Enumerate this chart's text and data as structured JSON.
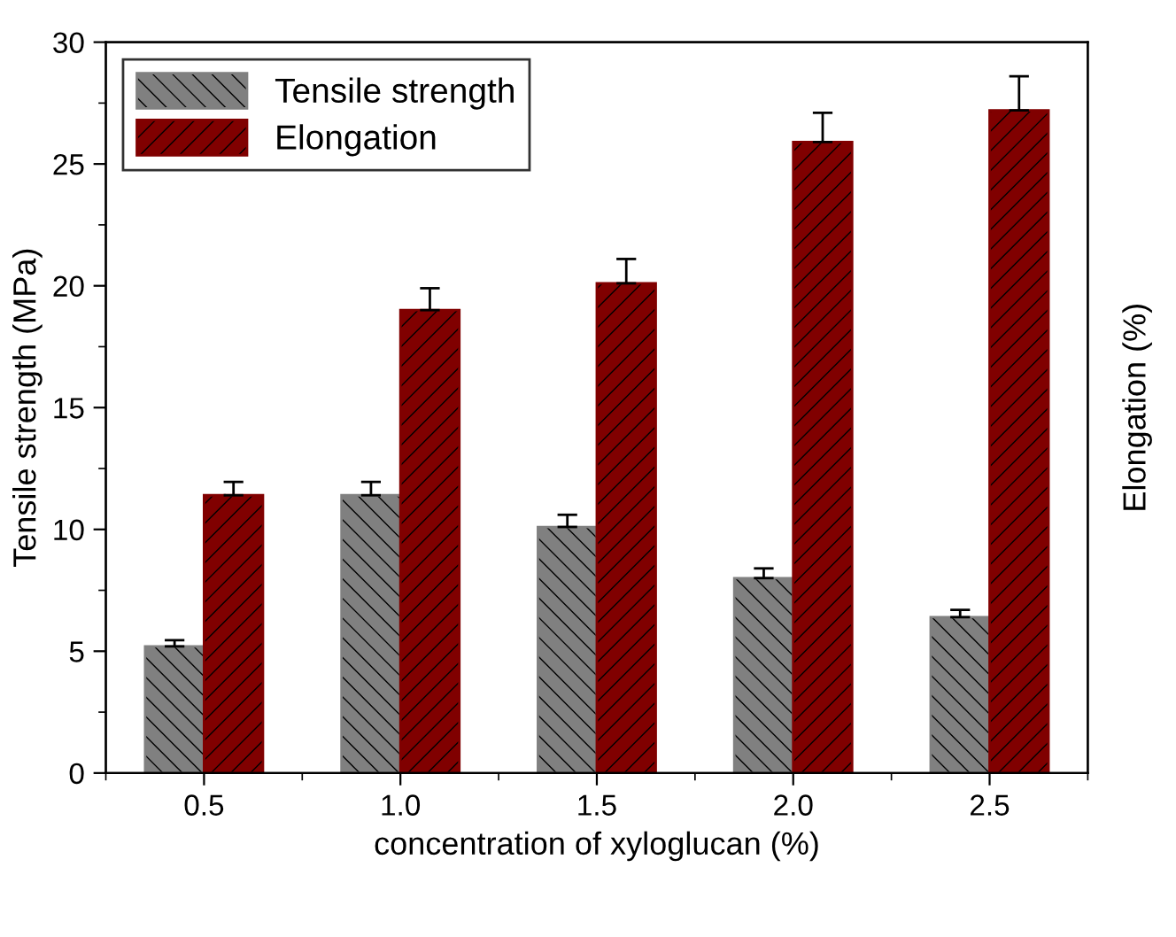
{
  "chart_data": {
    "type": "bar",
    "xlabel": "concentration of xyloglucan (%)",
    "ylabel": "Tensile strength (MPa)",
    "y2label": "Elongation (%)",
    "categories": [
      "0.5",
      "1.0",
      "1.5",
      "2.0",
      "2.5"
    ],
    "series": [
      {
        "name": "Tensile strength",
        "color": "#808080",
        "values": [
          5.2,
          11.4,
          10.1,
          8.0,
          6.4
        ],
        "errors": [
          0.25,
          0.55,
          0.5,
          0.4,
          0.3
        ]
      },
      {
        "name": "Elongation",
        "color": "#800000",
        "values": [
          11.4,
          19.0,
          20.1,
          25.9,
          27.2
        ],
        "errors": [
          0.55,
          0.9,
          1.0,
          1.2,
          1.4
        ]
      }
    ],
    "ylim": [
      0,
      30
    ],
    "yticks": [
      0,
      5,
      10,
      15,
      20,
      25,
      30
    ],
    "grid": false,
    "legend": "top left"
  }
}
